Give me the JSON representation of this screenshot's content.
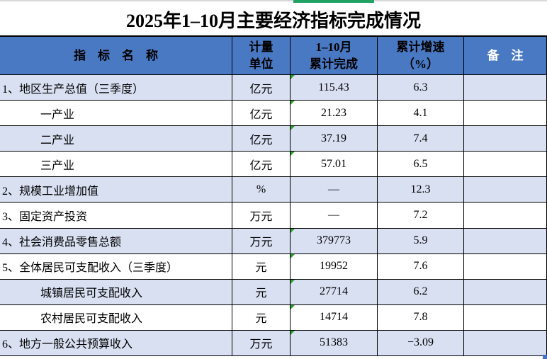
{
  "title": "2025年1–10月主要经济指标完成情况",
  "colors": {
    "header_bg": "#4a79c4",
    "header_text": "#000000",
    "remark_header_text": "#ffffff",
    "row_shaded_bg": "#d8e0f2",
    "row_plain_bg": "#ffffff",
    "border": "#000000",
    "green_accent_bar": "#21a366",
    "cell_flag_triangle": "#2e9e2e",
    "selection_handle": "#4472c4",
    "top_line": "#d9d9d9"
  },
  "icons": {
    "cell_flag": "green-corner-triangle",
    "selection_handle": "blue-square-handle"
  },
  "table": {
    "headers": [
      "指　标　名　称",
      "计量\n单位",
      "1–10月\n累计完成",
      "累计增速\n（%）",
      "备　注"
    ],
    "rows": [
      {
        "label": "1、地区生产总值（三季度）",
        "indent": false,
        "unit": "亿元",
        "value": "115.43",
        "value_flag": true,
        "growth": "6.3",
        "remark": "",
        "shaded": true
      },
      {
        "label": "一产业",
        "indent": true,
        "unit": "亿元",
        "value": "21.23",
        "value_flag": true,
        "growth": "4.1",
        "remark": "",
        "shaded": false
      },
      {
        "label": "二产业",
        "indent": true,
        "unit": "亿元",
        "value": "37.19",
        "value_flag": true,
        "growth": "7.4",
        "remark": "",
        "shaded": true
      },
      {
        "label": "三产业",
        "indent": true,
        "unit": "亿元",
        "value": "57.01",
        "value_flag": true,
        "growth": "6.5",
        "remark": "",
        "shaded": false
      },
      {
        "label": "2、规模工业增加值",
        "indent": false,
        "unit": "%",
        "value": "—",
        "value_flag": false,
        "growth": "12.3",
        "remark": "",
        "shaded": true
      },
      {
        "label": "3、固定资产投资",
        "indent": false,
        "unit": "万元",
        "value": "—",
        "value_flag": false,
        "growth": "7.2",
        "remark": "",
        "shaded": false
      },
      {
        "label": "4、社会消费品零售总额",
        "indent": false,
        "unit": "万元",
        "value": "379773",
        "value_flag": true,
        "growth": "5.9",
        "remark": "",
        "shaded": true
      },
      {
        "label": "5、全体居民可支配收入（三季度）",
        "indent": false,
        "unit": "元",
        "value": "19952",
        "value_flag": true,
        "growth": "7.6",
        "remark": "",
        "shaded": false
      },
      {
        "label": "城镇居民可支配收入",
        "indent": true,
        "unit": "元",
        "value": "27714",
        "value_flag": true,
        "growth": "6.2",
        "remark": "",
        "shaded": true
      },
      {
        "label": "农村居民可支配收入",
        "indent": true,
        "unit": "元",
        "value": "14714",
        "value_flag": true,
        "growth": "7.8",
        "remark": "",
        "shaded": false
      },
      {
        "label": "6、地方一般公共预算收入",
        "indent": false,
        "unit": "万元",
        "value": "51383",
        "value_flag": true,
        "growth": "−3.09",
        "remark": "",
        "shaded": true
      }
    ]
  }
}
